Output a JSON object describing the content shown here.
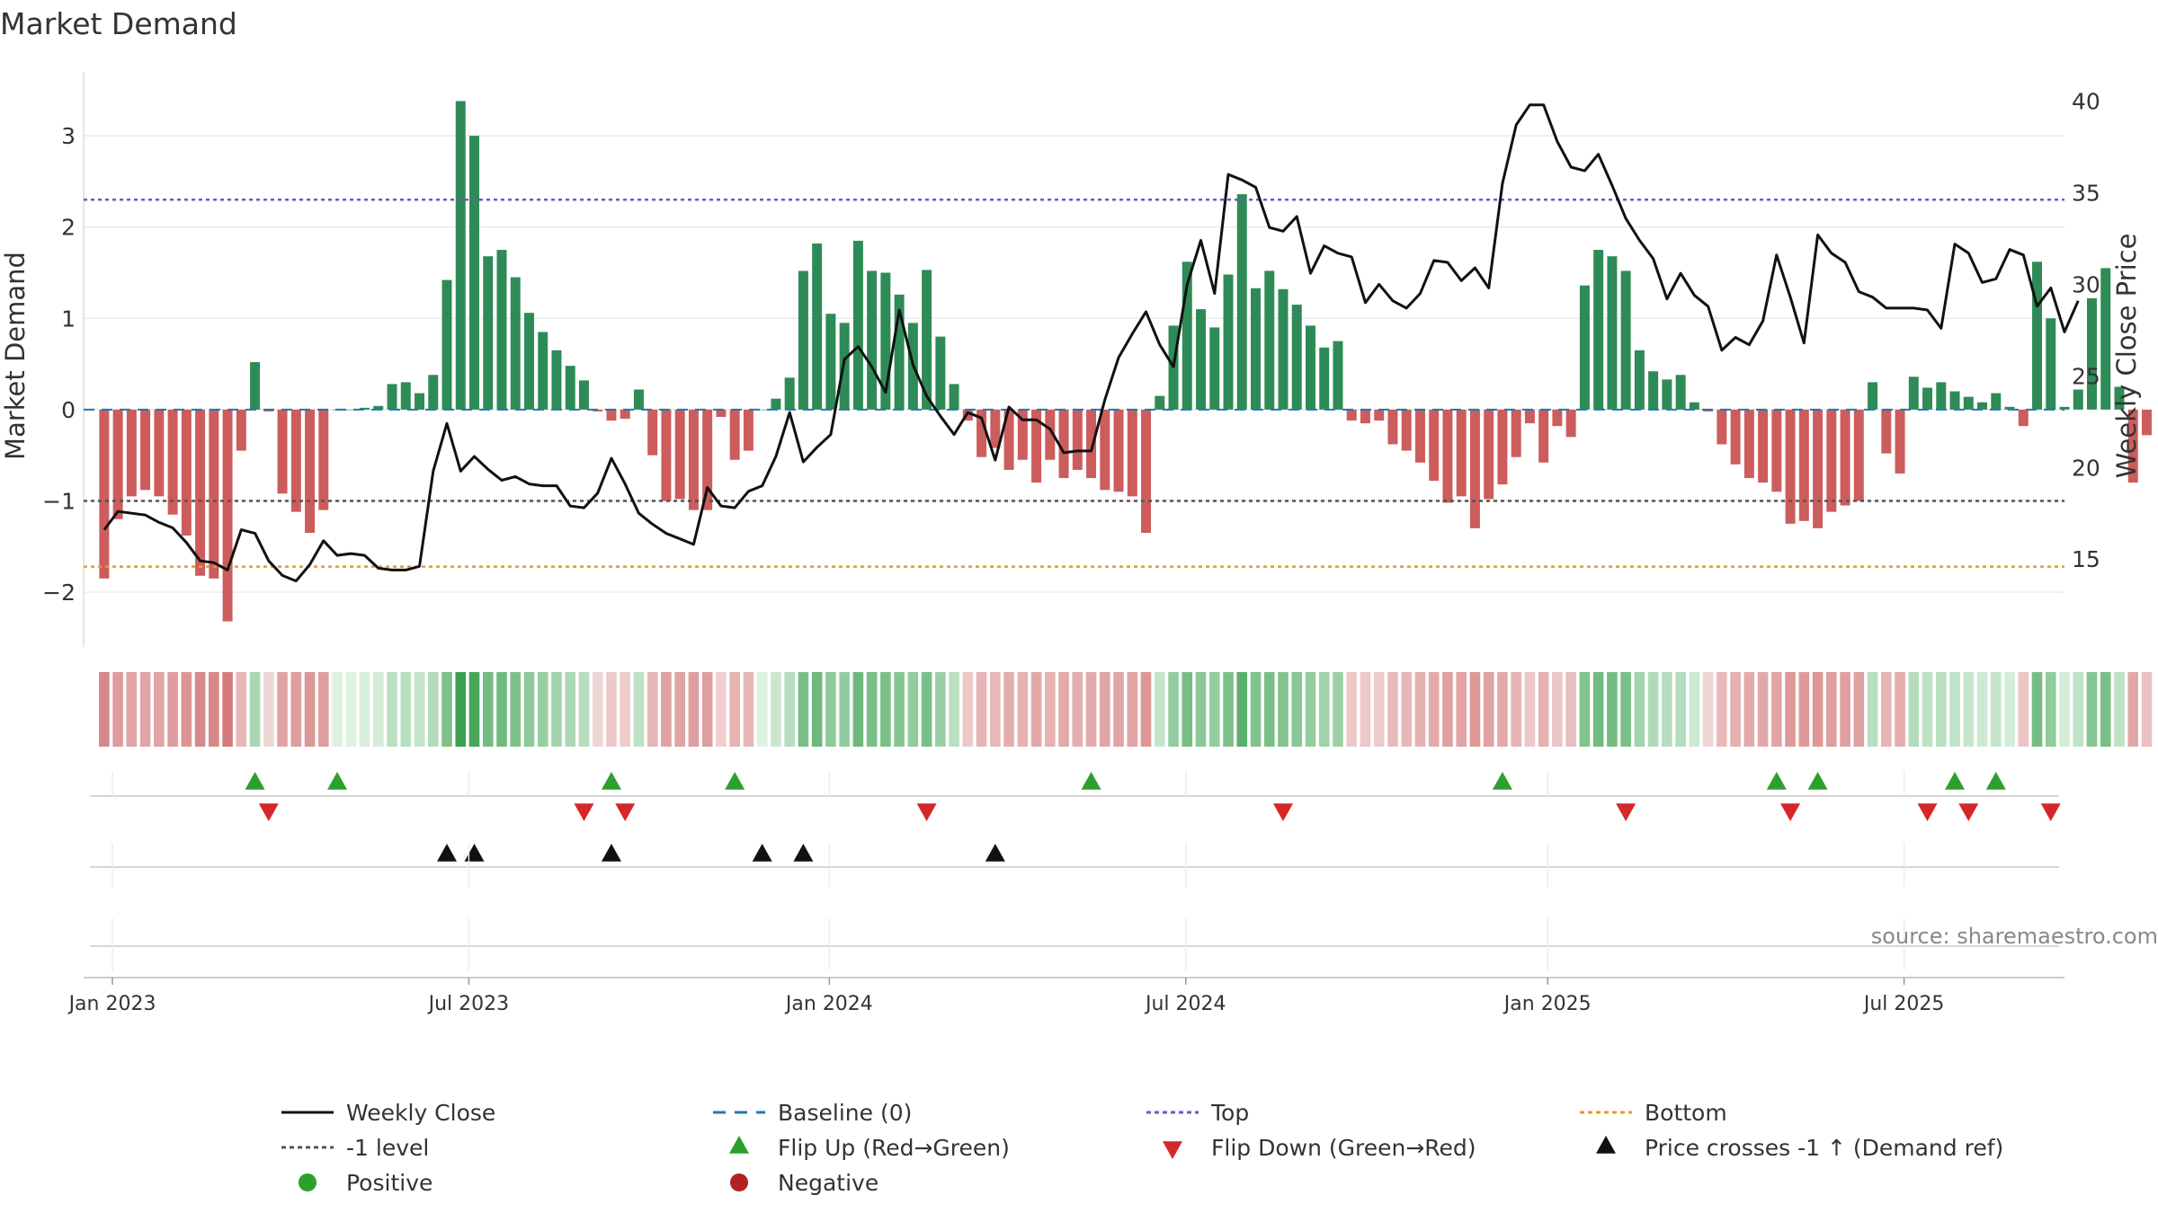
{
  "colors": {
    "positive_bar": "#2e8b57",
    "negative_bar": "#cd5c5c",
    "price_line": "#111111",
    "baseline": "#1f77b4",
    "top_line": "#6a5acd",
    "bottom_line": "#e69b2e",
    "minus1_line": "#555555",
    "flip_up": "#2ca02c",
    "flip_down": "#d62728",
    "cross_marker": "#111111",
    "positive_dot": "#2ca02c",
    "negative_dot": "#b22222"
  },
  "chart_data": {
    "type": "bar+line",
    "title": "Market Demand",
    "ylabel_left": "Market Demand",
    "ylabel_right": "Weekly Close Price",
    "ylim_left": [
      -2.6,
      3.7
    ],
    "ylim_right": [
      10.2,
      41.6
    ],
    "yticks_left": [
      -2,
      -1,
      0,
      1,
      2,
      3
    ],
    "yticks_left_labels": [
      "−2",
      "−1",
      "0",
      "1",
      "2",
      "3"
    ],
    "yticks_right": [
      15,
      20,
      25,
      30,
      35,
      40
    ],
    "yticks_right_labels": [
      "15",
      "20",
      "25",
      "30",
      "35",
      "40"
    ],
    "xlim": [
      -1.5,
      143
    ],
    "x_ticks": [
      {
        "label": "Jan 2023",
        "index": 0.6
      },
      {
        "label": "Jul 2023",
        "index": 26.6
      },
      {
        "label": "Jan 2024",
        "index": 52.9
      },
      {
        "label": "Jul 2024",
        "index": 78.9
      },
      {
        "label": "Jan 2025",
        "index": 105.3
      },
      {
        "label": "Jul 2025",
        "index": 131.3
      }
    ],
    "top_level": 2.3,
    "bottom_level": -1.72,
    "minus1_level": -1.0,
    "baseline": 0,
    "demand": [
      -1.85,
      -1.2,
      -0.95,
      -0.88,
      -0.95,
      -1.15,
      -1.38,
      -1.82,
      -1.85,
      -2.32,
      -0.45,
      0.52,
      -0.02,
      -0.92,
      -1.12,
      -1.35,
      -1.1,
      0,
      0,
      0.02,
      0.04,
      0.28,
      0.3,
      0.18,
      0.38,
      1.42,
      3.38,
      3.0,
      1.68,
      1.75,
      1.45,
      1.06,
      0.85,
      0.65,
      0.48,
      0.32,
      -0.02,
      -0.12,
      -0.1,
      0.22,
      -0.5,
      -1.0,
      -0.98,
      -1.1,
      -1.1,
      -0.08,
      -0.55,
      -0.45,
      0,
      0.12,
      0.35,
      1.52,
      1.82,
      1.05,
      0.95,
      1.85,
      1.52,
      1.5,
      1.26,
      0.95,
      1.53,
      0.8,
      0.28,
      -0.12,
      -0.52,
      -0.42,
      -0.66,
      -0.55,
      -0.8,
      -0.55,
      -0.75,
      -0.66,
      -0.75,
      -0.88,
      -0.9,
      -0.95,
      -1.35,
      0.15,
      0.92,
      1.62,
      1.1,
      0.9,
      1.48,
      2.36,
      1.33,
      1.52,
      1.32,
      1.15,
      0.92,
      0.68,
      0.75,
      -0.12,
      -0.15,
      -0.12,
      -0.38,
      -0.45,
      -0.58,
      -0.78,
      -1.02,
      -0.95,
      -1.3,
      -0.98,
      -0.82,
      -0.52,
      -0.15,
      -0.58,
      -0.18,
      -0.3,
      1.36,
      1.75,
      1.68,
      1.52,
      0.65,
      0.42,
      0.33,
      0.38,
      0.08,
      -0.02,
      -0.38,
      -0.6,
      -0.75,
      -0.8,
      -0.9,
      -1.25,
      -1.22,
      -1.3,
      -1.12,
      -1.05,
      -1.0,
      0.3,
      -0.48,
      -0.7,
      0.36,
      0.24,
      0.3,
      0.2,
      0.14,
      0.08,
      0.18,
      0.03,
      -0.18,
      1.62,
      1.0,
      0.03,
      0.22,
      1.22,
      1.55,
      0.25,
      -0.8,
      -0.28
    ],
    "price": [
      16.6,
      17.6,
      17.5,
      17.4,
      17.0,
      16.7,
      15.9,
      14.9,
      14.8,
      14.4,
      16.6,
      16.4,
      14.9,
      14.1,
      13.8,
      14.7,
      16.0,
      15.2,
      15.3,
      15.2,
      14.5,
      14.4,
      14.4,
      14.6,
      19.8,
      22.4,
      19.8,
      20.6,
      19.9,
      19.3,
      19.5,
      19.1,
      19.0,
      19.0,
      17.9,
      17.8,
      18.6,
      20.5,
      19.1,
      17.5,
      16.9,
      16.4,
      16.1,
      15.8,
      18.9,
      17.9,
      17.8,
      18.7,
      19.0,
      20.6,
      23.0,
      20.3,
      21.1,
      21.8,
      25.9,
      26.6,
      25.5,
      24.1,
      28.6,
      25.6,
      23.9,
      22.8,
      21.8,
      23.0,
      22.7,
      20.4,
      23.3,
      22.6,
      22.6,
      22.1,
      20.8,
      20.9,
      20.9,
      23.7,
      26.0,
      27.3,
      28.5,
      26.7,
      25.5,
      30.0,
      32.4,
      29.5,
      36.0,
      35.7,
      35.3,
      33.1,
      32.9,
      33.7,
      30.6,
      32.1,
      31.7,
      31.5,
      29.0,
      30.0,
      29.1,
      28.7,
      29.5,
      31.3,
      31.2,
      30.2,
      30.9,
      29.8,
      35.5,
      38.7,
      39.8,
      39.8,
      37.8,
      36.4,
      36.2,
      37.1,
      35.4,
      33.6,
      32.4,
      31.4,
      29.2,
      30.6,
      29.4,
      28.8,
      26.4,
      27.1,
      26.7,
      28.0,
      31.6,
      29.3,
      26.8,
      32.7,
      31.7,
      31.2,
      29.6,
      29.3,
      28.7,
      28.7,
      28.7,
      28.6,
      27.6,
      32.2,
      31.7,
      30.1,
      30.3,
      31.9,
      31.6,
      28.8,
      29.8,
      27.4,
      29.1
    ],
    "flip_up_indices": [
      11,
      17,
      37,
      46,
      72,
      102,
      122,
      125,
      135,
      138
    ],
    "flip_down_indices": [
      12,
      35,
      38,
      60,
      86,
      111,
      123,
      133,
      136,
      142
    ],
    "price_cross_indices": [
      25,
      27,
      37,
      48,
      51,
      65
    ],
    "band_gamma": 0.6,
    "legend": {
      "placement": "bottom",
      "items": [
        {
          "label": "Weekly Close",
          "symbol": "solid-line",
          "color": "#111111"
        },
        {
          "label": "Baseline (0)",
          "symbol": "dashed-line",
          "color": "#1f77b4"
        },
        {
          "label": "Top",
          "symbol": "dotted-line",
          "color": "#6a5acd"
        },
        {
          "label": "Bottom",
          "symbol": "dotted-line",
          "color": "#e69b2e"
        },
        {
          "label": "-1 level",
          "symbol": "dotted-line",
          "color": "#555555"
        },
        {
          "label": "Flip Up (Red→Green)",
          "symbol": "triangle-up",
          "color": "#2ca02c"
        },
        {
          "label": "Flip Down (Green→Red)",
          "symbol": "triangle-down",
          "color": "#d62728"
        },
        {
          "label": "Price crosses -1 ↑ (Demand ref)",
          "symbol": "triangle-up",
          "color": "#111111"
        },
        {
          "label": "Positive",
          "symbol": "dot",
          "color": "#2ca02c"
        },
        {
          "label": "Negative",
          "symbol": "dot",
          "color": "#b22222"
        }
      ]
    }
  },
  "watermark": "source: sharemaestro.com"
}
